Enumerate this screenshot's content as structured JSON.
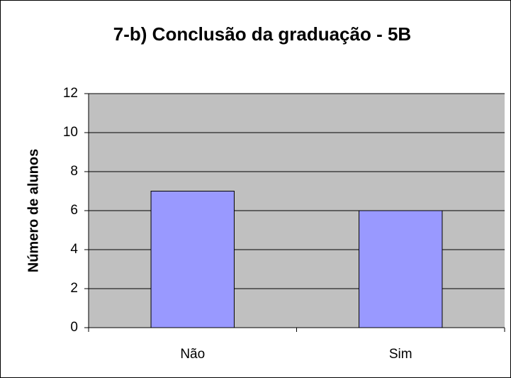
{
  "chart_data": {
    "type": "bar",
    "title": "7-b) Conclusão da graduação - 5B",
    "y_label": "Número de alunos",
    "categories": [
      "Não",
      "Sim"
    ],
    "values": [
      7,
      6
    ],
    "color": "#9999ff",
    "ylim": [
      0,
      12
    ],
    "yticks": [
      0,
      2,
      4,
      6,
      8,
      10,
      12
    ],
    "grid": true
  }
}
